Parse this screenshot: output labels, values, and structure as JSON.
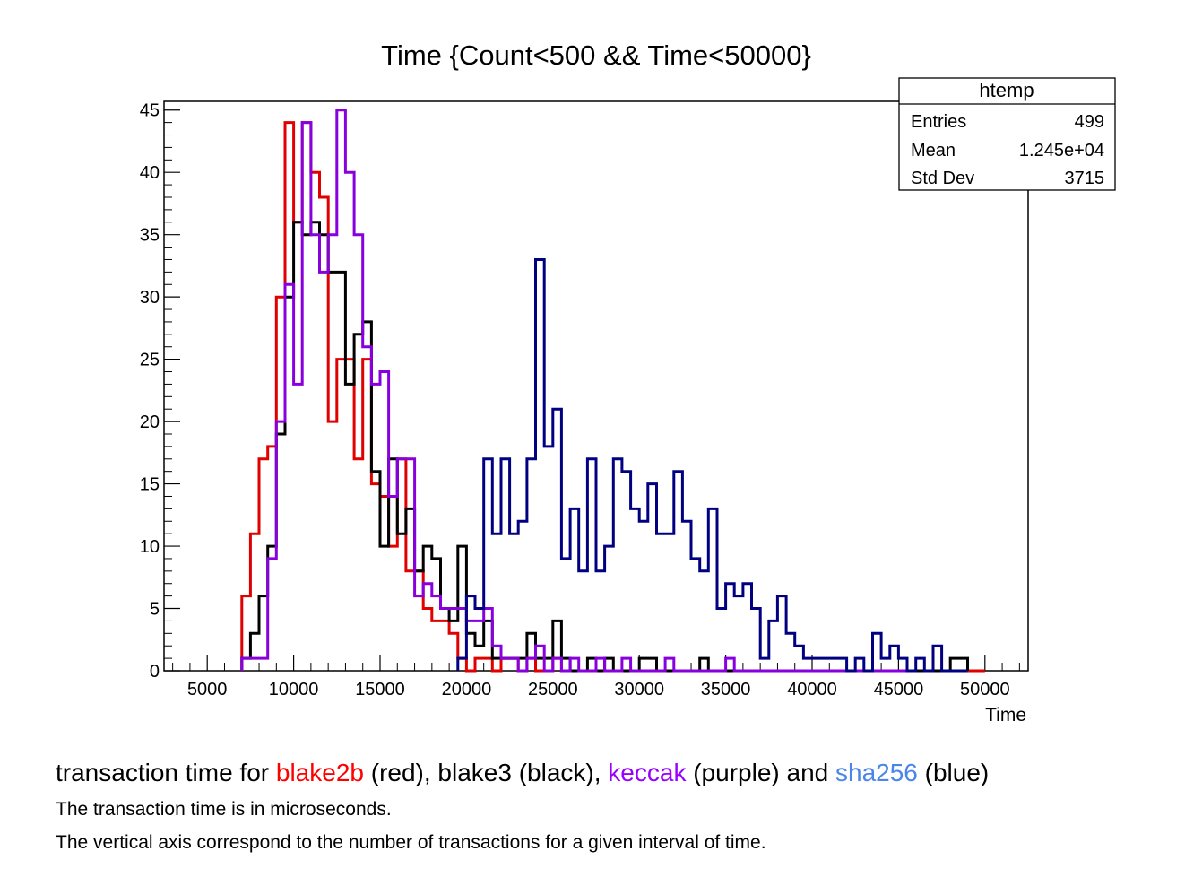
{
  "chart_data": {
    "type": "histogram",
    "title": "Time {Count<500 && Time<50000}",
    "xlabel": "Time",
    "ylabel": "",
    "xlim": [
      2500,
      52500
    ],
    "ylim": [
      0,
      45.7
    ],
    "bin_width": 500,
    "x_ticks": [
      5000,
      10000,
      15000,
      20000,
      25000,
      30000,
      35000,
      40000,
      45000,
      50000
    ],
    "y_ticks": [
      0,
      5,
      10,
      15,
      20,
      25,
      30,
      35,
      40,
      45
    ],
    "x_tick_labels": [
      "5000",
      "10000",
      "15000",
      "20000",
      "25000",
      "30000",
      "35000",
      "40000",
      "45000",
      "50000"
    ],
    "y_tick_labels": [
      "0",
      "5",
      "10",
      "15",
      "20",
      "25",
      "30",
      "35",
      "40",
      "45"
    ],
    "stats_box": {
      "title": "htemp",
      "rows": [
        {
          "label": "Entries",
          "value": "499"
        },
        {
          "label": "Mean",
          "value": "1.245e+04"
        },
        {
          "label": "Std Dev",
          "value": "3715"
        }
      ]
    },
    "series": [
      {
        "name": "blake2b",
        "color_name": "red",
        "color": "#e00000",
        "bins": [
          [
            7000,
            6
          ],
          [
            7500,
            11
          ],
          [
            8000,
            17
          ],
          [
            8500,
            18
          ],
          [
            9000,
            30
          ],
          [
            9500,
            44
          ],
          [
            10000,
            36
          ],
          [
            10500,
            44
          ],
          [
            11000,
            40
          ],
          [
            11500,
            38
          ],
          [
            12000,
            20
          ],
          [
            12500,
            25
          ],
          [
            13000,
            25
          ],
          [
            13500,
            17
          ],
          [
            14000,
            25
          ],
          [
            14500,
            15
          ],
          [
            15000,
            14
          ],
          [
            15500,
            10
          ],
          [
            16000,
            17
          ],
          [
            16500,
            8
          ],
          [
            17000,
            8
          ],
          [
            17500,
            5
          ],
          [
            18000,
            4
          ],
          [
            18500,
            4
          ],
          [
            19000,
            3
          ],
          [
            19500,
            1
          ],
          [
            20000,
            0
          ],
          [
            20500,
            1
          ],
          [
            21000,
            1
          ],
          [
            21500,
            0
          ],
          [
            22000,
            1
          ],
          [
            22500,
            1
          ],
          [
            23000,
            0
          ],
          [
            23500,
            1
          ],
          [
            24000,
            0
          ],
          [
            24500,
            0
          ],
          [
            25000,
            1
          ],
          [
            25500,
            0
          ],
          [
            26000,
            0
          ],
          [
            50000,
            0
          ]
        ]
      },
      {
        "name": "blake3",
        "color_name": "black",
        "color": "#000000",
        "bins": [
          [
            7000,
            1
          ],
          [
            7500,
            3
          ],
          [
            8000,
            6
          ],
          [
            8500,
            10
          ],
          [
            9000,
            19
          ],
          [
            9500,
            30
          ],
          [
            10000,
            36
          ],
          [
            10500,
            35
          ],
          [
            11000,
            36
          ],
          [
            11500,
            35
          ],
          [
            12000,
            32
          ],
          [
            12500,
            32
          ],
          [
            13000,
            23
          ],
          [
            13500,
            27
          ],
          [
            14000,
            28
          ],
          [
            14500,
            16
          ],
          [
            15000,
            10
          ],
          [
            15500,
            17
          ],
          [
            16000,
            11
          ],
          [
            16500,
            13
          ],
          [
            17000,
            8
          ],
          [
            17500,
            10
          ],
          [
            18000,
            9
          ],
          [
            18500,
            5
          ],
          [
            19000,
            4
          ],
          [
            19500,
            10
          ],
          [
            20000,
            3
          ],
          [
            20500,
            2
          ],
          [
            21000,
            4
          ],
          [
            21500,
            1
          ],
          [
            22000,
            1
          ],
          [
            22500,
            1
          ],
          [
            23000,
            1
          ],
          [
            23500,
            3
          ],
          [
            24000,
            1
          ],
          [
            24500,
            1
          ],
          [
            25000,
            4
          ],
          [
            25500,
            1
          ],
          [
            26000,
            0
          ],
          [
            27000,
            1
          ],
          [
            27500,
            0
          ],
          [
            28000,
            1
          ],
          [
            28500,
            0
          ],
          [
            30000,
            1
          ],
          [
            31000,
            0
          ],
          [
            33500,
            1
          ],
          [
            34000,
            0
          ],
          [
            47500,
            0
          ],
          [
            48000,
            1
          ],
          [
            49000,
            0
          ]
        ]
      },
      {
        "name": "keccak",
        "color_name": "purple",
        "color": "#8800dd",
        "bins": [
          [
            7000,
            1
          ],
          [
            7500,
            1
          ],
          [
            8000,
            1
          ],
          [
            8500,
            9
          ],
          [
            9000,
            20
          ],
          [
            9500,
            31
          ],
          [
            10000,
            23
          ],
          [
            10500,
            44
          ],
          [
            11000,
            35
          ],
          [
            11500,
            32
          ],
          [
            12000,
            35
          ],
          [
            12500,
            45
          ],
          [
            13000,
            40
          ],
          [
            13500,
            35
          ],
          [
            14000,
            26
          ],
          [
            14500,
            23
          ],
          [
            15000,
            24
          ],
          [
            15500,
            14
          ],
          [
            16000,
            17
          ],
          [
            16500,
            17
          ],
          [
            17000,
            6
          ],
          [
            17500,
            7
          ],
          [
            18000,
            6
          ],
          [
            18500,
            5
          ],
          [
            19000,
            5
          ],
          [
            19500,
            5
          ],
          [
            20000,
            4
          ],
          [
            20500,
            4
          ],
          [
            21000,
            5
          ],
          [
            21500,
            2
          ],
          [
            22000,
            1
          ],
          [
            22500,
            1
          ],
          [
            23000,
            0
          ],
          [
            23500,
            1
          ],
          [
            24000,
            2
          ],
          [
            24500,
            0
          ],
          [
            25000,
            1
          ],
          [
            25500,
            0
          ],
          [
            26000,
            1
          ],
          [
            26500,
            0
          ],
          [
            27500,
            1
          ],
          [
            28000,
            0
          ],
          [
            29000,
            1
          ],
          [
            29500,
            0
          ],
          [
            31500,
            1
          ],
          [
            32000,
            0
          ],
          [
            35000,
            1
          ],
          [
            35500,
            0
          ],
          [
            46000,
            0
          ]
        ]
      },
      {
        "name": "sha256",
        "color_name": "blue",
        "color": "#000080",
        "bins": [
          [
            19500,
            1
          ],
          [
            20000,
            6
          ],
          [
            20500,
            5
          ],
          [
            21000,
            17
          ],
          [
            21500,
            11
          ],
          [
            22000,
            17
          ],
          [
            22500,
            11
          ],
          [
            23000,
            12
          ],
          [
            23500,
            17
          ],
          [
            24000,
            33
          ],
          [
            24500,
            18
          ],
          [
            25000,
            21
          ],
          [
            25500,
            9
          ],
          [
            26000,
            13
          ],
          [
            26500,
            8
          ],
          [
            27000,
            17
          ],
          [
            27500,
            8
          ],
          [
            28000,
            10
          ],
          [
            28500,
            17
          ],
          [
            29000,
            16
          ],
          [
            29500,
            13
          ],
          [
            30000,
            12
          ],
          [
            30500,
            15
          ],
          [
            31000,
            11
          ],
          [
            31500,
            11
          ],
          [
            32000,
            16
          ],
          [
            32500,
            12
          ],
          [
            33000,
            9
          ],
          [
            33500,
            8
          ],
          [
            34000,
            13
          ],
          [
            34500,
            5
          ],
          [
            35000,
            7
          ],
          [
            35500,
            6
          ],
          [
            36000,
            7
          ],
          [
            36500,
            5
          ],
          [
            37000,
            1
          ],
          [
            37500,
            4
          ],
          [
            38000,
            6
          ],
          [
            38500,
            3
          ],
          [
            39000,
            2
          ],
          [
            39500,
            1
          ],
          [
            40000,
            1
          ],
          [
            40500,
            1
          ],
          [
            41000,
            1
          ],
          [
            41500,
            1
          ],
          [
            42000,
            0
          ],
          [
            42500,
            1
          ],
          [
            43000,
            0
          ],
          [
            43500,
            3
          ],
          [
            44000,
            1
          ],
          [
            44500,
            2
          ],
          [
            45000,
            1
          ],
          [
            45500,
            0
          ],
          [
            46000,
            1
          ],
          [
            46500,
            0
          ],
          [
            47000,
            2
          ],
          [
            47500,
            0
          ],
          [
            49000,
            0
          ]
        ]
      }
    ]
  },
  "caption": {
    "main": [
      {
        "text": "transaction time for ",
        "color": "#000000"
      },
      {
        "text": "blake2b",
        "color": "#ff0000"
      },
      {
        "text": " (red), blake3 (black), ",
        "color": "#000000"
      },
      {
        "text": "keccak",
        "color": "#9900ff"
      },
      {
        "text": " (purple) and ",
        "color": "#000000"
      },
      {
        "text": "sha256",
        "color": "#4a86e8"
      },
      {
        "text": " (blue)",
        "color": "#000000"
      }
    ],
    "line2": "The transaction time is in microseconds.",
    "line3": "The vertical axis correspond to the number of transactions for a given interval of time."
  }
}
